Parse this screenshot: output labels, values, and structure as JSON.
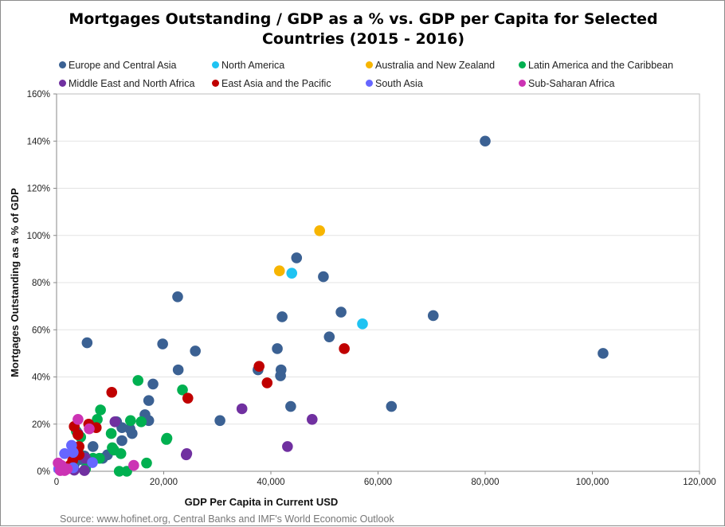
{
  "chart_data": {
    "type": "scatter",
    "title": "Mortgages Outstanding / GDP as a % vs. GDP per Capita for Selected Countries (2015 - 2016)",
    "title_lines": [
      "Mortgages Outstanding / GDP as a % vs. GDP per Capita for Selected",
      "Countries (2015 - 2016)"
    ],
    "xlabel": "GDP Per Capita in Current USD",
    "ylabel": "Mortgages Outstanding as a % of GDP",
    "xlim": [
      0,
      120000
    ],
    "ylim": [
      0,
      160
    ],
    "x_ticks": [
      0,
      20000,
      40000,
      60000,
      80000,
      100000,
      120000
    ],
    "x_tick_labels": [
      "0",
      "20,000",
      "40,000",
      "60,000",
      "80,000",
      "100,000",
      "120,000"
    ],
    "y_ticks": [
      0,
      20,
      40,
      60,
      80,
      100,
      120,
      140,
      160
    ],
    "y_tick_labels": [
      "0%",
      "20%",
      "40%",
      "60%",
      "80%",
      "100%",
      "120%",
      "140%",
      "160%"
    ],
    "grid": "horizontal",
    "legend_placement": "top",
    "source": "Source: www.hofinet.org, Central Banks and IMF's World Economic Outlook",
    "series": [
      {
        "name": "Europe and Central Asia",
        "color": "#3b6193",
        "points": [
          [
            80000,
            140
          ],
          [
            102000,
            50
          ],
          [
            70300,
            66
          ],
          [
            62500,
            27.5
          ],
          [
            53100,
            67.5
          ],
          [
            50900,
            57
          ],
          [
            49800,
            82.5
          ],
          [
            44800,
            90.5
          ],
          [
            43700,
            27.5
          ],
          [
            42100,
            65.5
          ],
          [
            41900,
            43
          ],
          [
            41800,
            40.5
          ],
          [
            41200,
            52
          ],
          [
            37600,
            43
          ],
          [
            30500,
            21.5
          ],
          [
            25900,
            51
          ],
          [
            22600,
            74
          ],
          [
            22700,
            43
          ],
          [
            19800,
            54
          ],
          [
            5700,
            54.5
          ],
          [
            18000,
            37
          ],
          [
            17200,
            30
          ],
          [
            17200,
            21.5
          ],
          [
            16500,
            24
          ],
          [
            14100,
            16
          ],
          [
            13700,
            18
          ],
          [
            12200,
            13
          ],
          [
            12200,
            18.5
          ],
          [
            11200,
            21
          ],
          [
            9500,
            7
          ],
          [
            8600,
            5.5
          ],
          [
            6800,
            10.5
          ],
          [
            5200,
            6.5
          ],
          [
            4500,
            5
          ],
          [
            3700,
            8
          ],
          [
            3300,
            3
          ],
          [
            5500,
            4.5
          ]
        ]
      },
      {
        "name": "North America",
        "color": "#1fc3f2",
        "points": [
          [
            43900,
            84
          ],
          [
            57100,
            62.5
          ]
        ]
      },
      {
        "name": "Australia and New Zealand",
        "color": "#f7b500",
        "points": [
          [
            41600,
            85
          ],
          [
            49100,
            102
          ]
        ]
      },
      {
        "name": "Latin America and the Caribbean",
        "color": "#00b050",
        "points": [
          [
            15200,
            38.5
          ],
          [
            23500,
            34.5
          ],
          [
            10200,
            16
          ],
          [
            8200,
            26
          ],
          [
            7600,
            22
          ],
          [
            13800,
            21.5
          ],
          [
            15800,
            21
          ],
          [
            10400,
            10
          ],
          [
            20500,
            13.5
          ],
          [
            20600,
            14
          ],
          [
            12000,
            7.5
          ],
          [
            10700,
            9
          ],
          [
            11700,
            0
          ],
          [
            13100,
            0
          ],
          [
            16800,
            3.5
          ],
          [
            8000,
            5.5
          ],
          [
            6800,
            5.5
          ],
          [
            4000,
            9
          ],
          [
            3000,
            3
          ],
          [
            5400,
            1
          ],
          [
            1500,
            0.5
          ],
          [
            4500,
            14.5
          ],
          [
            3700,
            17
          ]
        ]
      },
      {
        "name": "Middle East and North Africa",
        "color": "#7030a0",
        "points": [
          [
            34600,
            26.5
          ],
          [
            47700,
            22
          ],
          [
            43100,
            10.5
          ],
          [
            24200,
            7
          ],
          [
            24300,
            7.5
          ],
          [
            10900,
            21
          ],
          [
            5200,
            0.3
          ],
          [
            3300,
            0.5
          ],
          [
            5400,
            5.5
          ],
          [
            4000,
            16
          ]
        ]
      },
      {
        "name": "East Asia and the Pacific",
        "color": "#c00000",
        "points": [
          [
            37800,
            44.5
          ],
          [
            39300,
            37.5
          ],
          [
            53700,
            52
          ],
          [
            24500,
            31
          ],
          [
            10300,
            33.5
          ],
          [
            7400,
            18.5
          ],
          [
            6000,
            20
          ],
          [
            3300,
            19
          ],
          [
            4000,
            15.5
          ],
          [
            4200,
            10.5
          ],
          [
            3000,
            4.5
          ],
          [
            2500,
            2.5
          ],
          [
            4200,
            7
          ]
        ]
      },
      {
        "name": "South Asia",
        "color": "#6666ff",
        "points": [
          [
            1500,
            7.5
          ],
          [
            2800,
            11
          ],
          [
            3100,
            8
          ],
          [
            6700,
            3.7
          ],
          [
            3100,
            1.5
          ],
          [
            400,
            1
          ]
        ]
      },
      {
        "name": "Sub-Saharan Africa",
        "color": "#cc33b4",
        "points": [
          [
            4000,
            22
          ],
          [
            6100,
            18
          ],
          [
            14400,
            2.5
          ],
          [
            900,
            2.5
          ],
          [
            700,
            0.3
          ],
          [
            1500,
            0.3
          ],
          [
            2000,
            1
          ],
          [
            300,
            3.5
          ],
          [
            1200,
            1.5
          ]
        ]
      }
    ]
  }
}
